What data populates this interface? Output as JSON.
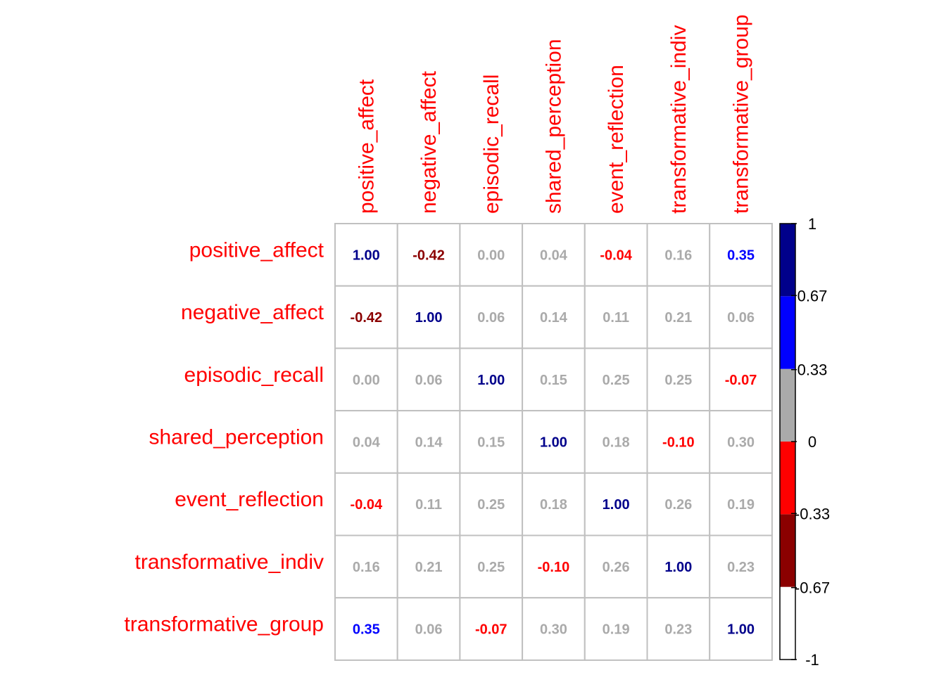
{
  "chart_data": {
    "type": "heatmap",
    "title": "",
    "variables": [
      "positive_affect",
      "negative_affect",
      "episodic_recall",
      "shared_perception",
      "event_reflection",
      "transformative_indiv",
      "transformative_group"
    ],
    "matrix": [
      [
        1.0,
        -0.42,
        0.0,
        0.04,
        -0.04,
        0.16,
        0.35
      ],
      [
        -0.42,
        1.0,
        0.06,
        0.14,
        0.11,
        0.21,
        0.06
      ],
      [
        0.0,
        0.06,
        1.0,
        0.15,
        0.25,
        0.25,
        -0.07
      ],
      [
        0.04,
        0.14,
        0.15,
        1.0,
        0.18,
        -0.1,
        0.3
      ],
      [
        -0.04,
        0.11,
        0.25,
        0.18,
        1.0,
        0.26,
        0.19
      ],
      [
        0.16,
        0.21,
        0.25,
        -0.1,
        0.26,
        1.0,
        0.23
      ],
      [
        0.35,
        0.06,
        -0.07,
        0.3,
        0.19,
        0.23,
        1.0
      ]
    ],
    "value_labels": [
      [
        "1.00",
        "-0.42",
        "0.00",
        "0.04",
        "-0.04",
        "0.16",
        "0.35"
      ],
      [
        "-0.42",
        "1.00",
        "0.06",
        "0.14",
        "0.11",
        "0.21",
        "0.06"
      ],
      [
        "0.00",
        "0.06",
        "1.00",
        "0.15",
        "0.25",
        "0.25",
        "-0.07"
      ],
      [
        "0.04",
        "0.14",
        "0.15",
        "1.00",
        "0.18",
        "-0.10",
        "0.30"
      ],
      [
        "-0.04",
        "0.11",
        "0.25",
        "0.18",
        "1.00",
        "0.26",
        "0.19"
      ],
      [
        "0.16",
        "0.21",
        "0.25",
        "-0.10",
        "0.26",
        "1.00",
        "0.23"
      ],
      [
        "0.35",
        "0.06",
        "-0.07",
        "0.30",
        "0.19",
        "0.23",
        "1.00"
      ]
    ],
    "color_scale": {
      "range": [
        -1,
        1
      ],
      "bins": [
        {
          "from": -1,
          "to": -0.6667,
          "color": "#ffffff"
        },
        {
          "from": -0.6667,
          "to": -0.3333,
          "color": "#8b0000"
        },
        {
          "from": -0.3333,
          "to": 0,
          "color": "#ff0000"
        },
        {
          "from": 0,
          "to": 0.3333,
          "color": "#aaaaaa"
        },
        {
          "from": 0.3333,
          "to": 0.6667,
          "color": "#0000ff"
        },
        {
          "from": 0.6667,
          "to": 1,
          "color": "#00008b"
        }
      ],
      "ticks": [
        1,
        0.67,
        0.33,
        0,
        -0.33,
        -0.67,
        -1
      ],
      "tick_labels": [
        "1",
        "0.67",
        "0.33",
        "0",
        "-0.33",
        "-0.67",
        "-1"
      ]
    },
    "label_color": "#ff0000",
    "grid_color": "#c0c0c0",
    "grid": true,
    "legend": "right"
  }
}
